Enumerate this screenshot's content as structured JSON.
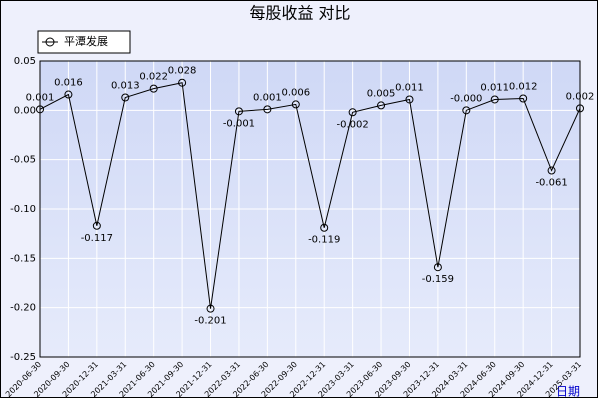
{
  "chart_data": {
    "type": "line",
    "title": "每股收益  对比",
    "x_label": "日期",
    "categories": [
      "2020-06-30",
      "2020-09-30",
      "2020-12-31",
      "2021-03-31",
      "2021-06-30",
      "2021-09-30",
      "2021-12-31",
      "2022-03-31",
      "2022-06-30",
      "2022-09-30",
      "2022-12-31",
      "2023-03-31",
      "2023-06-30",
      "2023-09-30",
      "2023-12-31",
      "2024-03-31",
      "2024-06-30",
      "2024-09-30",
      "2024-12-31",
      "2025-03-31"
    ],
    "series": [
      {
        "name": "平潭发展",
        "color": "#000000",
        "values": [
          0.001,
          0.016,
          -0.117,
          0.013,
          0.022,
          0.028,
          -0.201,
          -0.001,
          0.001,
          0.006,
          -0.119,
          -0.002,
          0.005,
          0.011,
          -0.159,
          -0.0,
          0.011,
          0.012,
          -0.061,
          0.002
        ],
        "value_labels": [
          "0.001",
          "0.016",
          "-0.117",
          "0.013",
          "0.022",
          "0.028",
          "-0.201",
          "-0.001",
          "0.001",
          "0.006",
          "-0.119",
          "-0.002",
          "0.005",
          "0.011",
          "-0.159",
          "-0.000",
          "0.011",
          "0.012",
          "-0.061",
          "0.002"
        ]
      }
    ],
    "ylim": [
      -0.25,
      0.05
    ],
    "yticks": [
      0.05,
      {
        "value": 0,
        "label": "0.00"
      },
      -0.05,
      {
        "value": -0.1,
        "label": "-0.10"
      },
      -0.15,
      {
        "value": -0.2,
        "label": "-0.20"
      },
      -0.25
    ],
    "grid": true,
    "legend": "top-left"
  }
}
